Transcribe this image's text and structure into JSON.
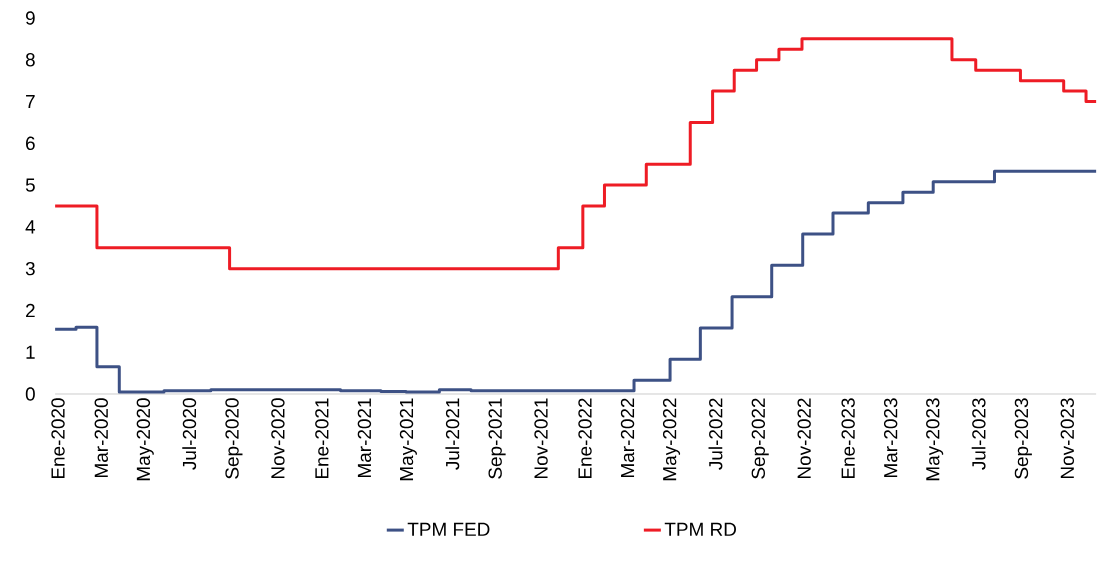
{
  "chart_data": {
    "type": "step",
    "xlim": [
      "2019-12-28",
      "2023-12-11"
    ],
    "ylim": [
      0,
      9
    ],
    "yticks": [
      0,
      1,
      2,
      3,
      4,
      5,
      6,
      7,
      8,
      9
    ],
    "xticks": [
      {
        "value": "2020-01-01",
        "label": "Ene-2020"
      },
      {
        "value": "2020-03-01",
        "label": "Mar-2020"
      },
      {
        "value": "2020-05-01",
        "label": "May-2020"
      },
      {
        "value": "2020-07-01",
        "label": "Jul-2020"
      },
      {
        "value": "2020-09-01",
        "label": "Sep-2020"
      },
      {
        "value": "2020-11-01",
        "label": "Nov-2020"
      },
      {
        "value": "2021-01-01",
        "label": "Ene-2021"
      },
      {
        "value": "2021-03-01",
        "label": "Mar-2021"
      },
      {
        "value": "2021-05-01",
        "label": "May-2021"
      },
      {
        "value": "2021-07-01",
        "label": "Jul-2021"
      },
      {
        "value": "2021-09-01",
        "label": "Sep-2021"
      },
      {
        "value": "2021-11-01",
        "label": "Nov-2021"
      },
      {
        "value": "2022-01-01",
        "label": "Ene-2022"
      },
      {
        "value": "2022-03-01",
        "label": "Mar-2022"
      },
      {
        "value": "2022-05-01",
        "label": "May-2022"
      },
      {
        "value": "2022-07-01",
        "label": "Jul-2022"
      },
      {
        "value": "2022-09-01",
        "label": "Sep-2022"
      },
      {
        "value": "2022-11-01",
        "label": "Nov-2022"
      },
      {
        "value": "2023-01-01",
        "label": "Ene-2023"
      },
      {
        "value": "2023-03-01",
        "label": "Mar-2023"
      },
      {
        "value": "2023-05-01",
        "label": "May-2023"
      },
      {
        "value": "2023-07-01",
        "label": "Jul-2023"
      },
      {
        "value": "2023-09-01",
        "label": "Sep-2023"
      },
      {
        "value": "2023-11-01",
        "label": "Nov-2023"
      }
    ],
    "series": [
      {
        "name": "TPM FED",
        "color": "#3d5185",
        "x": [
          "2019-12-28",
          "2020-01-26",
          "2020-02-24",
          "2020-03-26",
          "2020-05-27",
          "2020-07-31",
          "2021-01-27",
          "2021-03-24",
          "2021-04-28",
          "2021-06-13",
          "2021-07-27",
          "2022-03-10",
          "2022-04-29",
          "2022-06-10",
          "2022-07-24",
          "2022-09-17",
          "2022-10-30",
          "2022-12-11",
          "2023-01-29",
          "2023-03-18",
          "2023-04-29",
          "2023-07-23",
          "2023-12-11"
        ],
        "values": [
          1.55,
          1.6,
          0.65,
          0.05,
          0.08,
          0.1,
          0.08,
          0.06,
          0.05,
          0.1,
          0.08,
          0.33,
          0.83,
          1.58,
          2.33,
          3.08,
          3.83,
          4.33,
          4.58,
          4.83,
          5.08,
          5.33,
          5.33
        ]
      },
      {
        "name": "TPM RD",
        "color": "#ee1c25",
        "x": [
          "2019-12-28",
          "2020-02-24",
          "2020-08-26",
          "2021-11-25",
          "2021-12-29",
          "2022-01-28",
          "2022-03-27",
          "2022-05-27",
          "2022-06-27",
          "2022-07-27",
          "2022-08-27",
          "2022-09-27",
          "2022-10-29",
          "2023-05-25",
          "2023-06-27",
          "2023-08-28",
          "2023-10-27",
          "2023-11-27",
          "2023-12-11"
        ],
        "values": [
          4.5,
          3.5,
          3.0,
          3.5,
          4.5,
          5.0,
          5.5,
          6.5,
          7.25,
          7.75,
          8.0,
          8.25,
          8.5,
          8.0,
          7.75,
          7.5,
          7.25,
          7.0,
          7.0
        ]
      }
    ],
    "legend": "bottom",
    "marker": "none",
    "line_style": "solid"
  }
}
